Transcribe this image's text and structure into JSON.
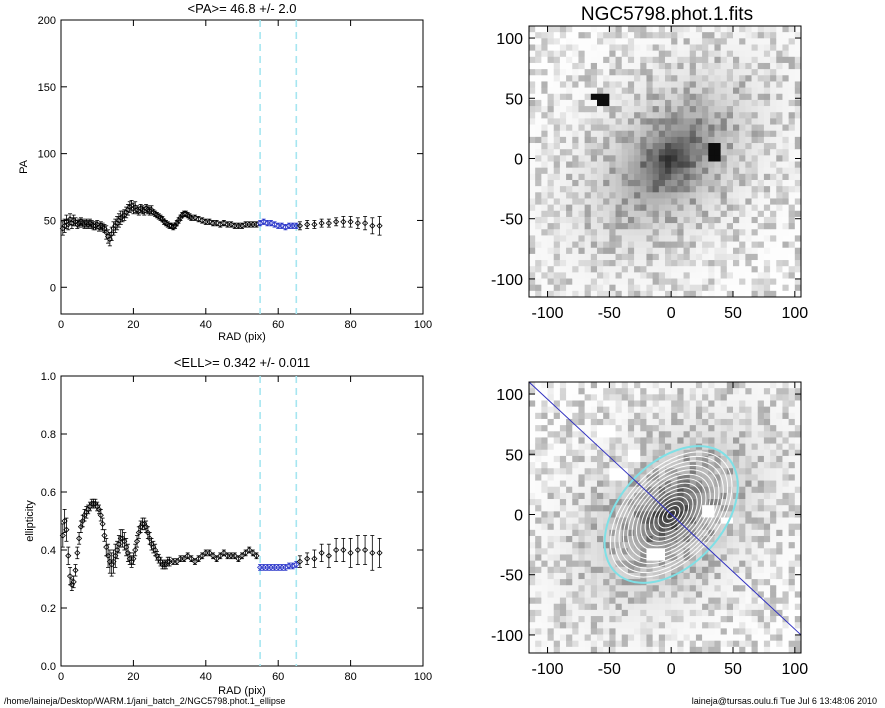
{
  "footer": {
    "left": "/home/laineja/Desktop/WARM.1/jani_batch_2/NGC5798.phot.1_ellipse",
    "right": "laineja@tursas.oulu.fi  Tue Jul  6 13:48:06 2010"
  },
  "chart_data": [
    {
      "type": "scatter",
      "title": "<PA>=  46.8 +/-   2.0",
      "xlabel": "RAD (pix)",
      "ylabel": "PA",
      "xlim": [
        0,
        100
      ],
      "ylim": [
        -20,
        200
      ],
      "xticks": [
        0,
        20,
        40,
        60,
        80,
        100
      ],
      "yticks": [
        0,
        50,
        100,
        150,
        200
      ],
      "vlines": [
        55,
        65
      ],
      "vline_color": "#a6e6f0",
      "mean": 46.8,
      "mean_err": 2.0,
      "series": [
        {
          "color": "#000000",
          "x": [
            0.5,
            1,
            1.5,
            2,
            2.5,
            3,
            3.5,
            4,
            4.5,
            5,
            5.5,
            6,
            6.5,
            7,
            7.5,
            8,
            8.5,
            9,
            9.5,
            10,
            10.5,
            11,
            11.5,
            12,
            12.5,
            13,
            13.5,
            14,
            14.5,
            15,
            15.5,
            16,
            16.5,
            17,
            17.5,
            18,
            18.5,
            19,
            19.5,
            20,
            20.5,
            21,
            21.5,
            22,
            22.5,
            23,
            23.5,
            24,
            24.5,
            25,
            25.5,
            26,
            26.5,
            27,
            27.5,
            28,
            28.5,
            29,
            29.5,
            30,
            30.5,
            31,
            31.5,
            32,
            32.5,
            33,
            33.5,
            34,
            34.5,
            35,
            35.5,
            36,
            37,
            38,
            39,
            40,
            41,
            42,
            43,
            44,
            45,
            46,
            47,
            48,
            49,
            50,
            51,
            52,
            53,
            54
          ],
          "y": [
            44,
            46,
            49,
            47,
            51,
            48,
            50,
            49,
            47,
            48,
            49,
            48,
            47,
            48,
            47,
            48,
            47,
            46,
            46,
            47,
            45,
            46,
            45,
            44,
            41,
            38,
            36,
            40,
            44,
            46,
            48,
            50,
            52,
            53,
            54,
            56,
            58,
            60,
            61,
            59,
            60,
            58,
            57,
            59,
            58,
            57,
            59,
            58,
            57,
            58,
            56,
            55,
            54,
            53,
            52,
            51,
            49,
            48,
            47,
            46,
            46,
            45,
            46,
            48,
            50,
            52,
            54,
            55,
            55,
            54,
            53,
            52,
            52,
            51,
            50,
            49,
            49,
            48,
            48,
            47,
            48,
            47,
            47,
            46,
            46,
            46,
            47,
            47,
            47,
            47
          ],
          "err": [
            5,
            5,
            5,
            4,
            4,
            4,
            4,
            3,
            3,
            3,
            3,
            3,
            3,
            3,
            3,
            3,
            3,
            3,
            3,
            3,
            3,
            3,
            3,
            3,
            5,
            5,
            5,
            5,
            5,
            5,
            5,
            5,
            5,
            4,
            4,
            4,
            4,
            4,
            4,
            4,
            4,
            3,
            3,
            3,
            3,
            3,
            3,
            3,
            3,
            3,
            2,
            2,
            2,
            2,
            2,
            2,
            2,
            2,
            2,
            2,
            2,
            2,
            2,
            2,
            2,
            2,
            2,
            2,
            2,
            2,
            2,
            2,
            2,
            2,
            2,
            2,
            2,
            2,
            2,
            2,
            2,
            2,
            2,
            2,
            2,
            2,
            2,
            2,
            2,
            2
          ]
        },
        {
          "color": "#2430c8",
          "x": [
            55,
            56,
            57,
            58,
            59,
            60,
            61,
            62,
            63,
            64,
            65
          ],
          "y": [
            48,
            49,
            48,
            48,
            47,
            46,
            46,
            45,
            46,
            46,
            46
          ],
          "err": [
            2,
            2,
            2,
            2,
            2,
            2,
            2,
            2,
            2,
            2,
            2
          ]
        },
        {
          "color": "#000000",
          "x": [
            66,
            68,
            70,
            72,
            74,
            76,
            78,
            80,
            82,
            84,
            86,
            88
          ],
          "y": [
            46,
            47,
            47,
            48,
            48,
            49,
            49,
            49,
            48,
            48,
            46,
            46
          ],
          "err": [
            3,
            3,
            3,
            3,
            3,
            3,
            4,
            4,
            4,
            5,
            6,
            7
          ]
        }
      ]
    },
    {
      "type": "scatter",
      "title": "<ELL>= 0.342 +/-  0.011",
      "xlabel": "RAD (pix)",
      "ylabel": "ellipticity",
      "xlim": [
        0,
        100
      ],
      "ylim": [
        0.0,
        1.0
      ],
      "xticks": [
        0,
        20,
        40,
        60,
        80,
        100
      ],
      "yticks": [
        0.0,
        0.2,
        0.4,
        0.6,
        0.8,
        1.0
      ],
      "ytick_labels": [
        "0.0",
        "0.2",
        "0.4",
        "0.6",
        "0.8",
        "1.0"
      ],
      "vlines": [
        55,
        65
      ],
      "vline_color": "#a6e6f0",
      "mean": 0.342,
      "mean_err": 0.011,
      "series": [
        {
          "color": "#000000",
          "x": [
            0.5,
            1,
            1.5,
            2,
            2.5,
            3,
            3.5,
            4,
            4.5,
            5,
            5.5,
            6,
            6.5,
            7,
            7.5,
            8,
            8.5,
            9,
            9.5,
            10,
            10.5,
            11,
            11.5,
            12,
            12.5,
            13,
            13.5,
            14,
            14.5,
            15,
            15.5,
            16,
            16.5,
            17,
            17.5,
            18,
            18.5,
            19,
            19.5,
            20,
            20.5,
            21,
            21.5,
            22,
            22.5,
            23,
            23.5,
            24,
            24.5,
            25,
            25.5,
            26,
            26.5,
            27,
            27.5,
            28,
            28.5,
            29,
            29.5,
            30,
            31,
            32,
            33,
            34,
            35,
            36,
            37,
            38,
            39,
            40,
            41,
            42,
            43,
            44,
            45,
            46,
            47,
            48,
            49,
            50,
            51,
            52,
            53,
            54
          ],
          "y": [
            0.45,
            0.5,
            0.47,
            0.38,
            0.31,
            0.28,
            0.29,
            0.33,
            0.39,
            0.44,
            0.48,
            0.5,
            0.52,
            0.53,
            0.54,
            0.55,
            0.56,
            0.56,
            0.56,
            0.55,
            0.54,
            0.52,
            0.49,
            0.45,
            0.41,
            0.38,
            0.36,
            0.35,
            0.36,
            0.38,
            0.4,
            0.42,
            0.44,
            0.44,
            0.43,
            0.41,
            0.39,
            0.37,
            0.36,
            0.37,
            0.4,
            0.43,
            0.46,
            0.48,
            0.49,
            0.49,
            0.48,
            0.46,
            0.44,
            0.42,
            0.41,
            0.4,
            0.38,
            0.37,
            0.36,
            0.35,
            0.35,
            0.35,
            0.36,
            0.36,
            0.36,
            0.36,
            0.37,
            0.37,
            0.38,
            0.37,
            0.36,
            0.37,
            0.38,
            0.39,
            0.39,
            0.38,
            0.37,
            0.38,
            0.39,
            0.38,
            0.38,
            0.38,
            0.37,
            0.38,
            0.39,
            0.4,
            0.39,
            0.38
          ],
          "err": [
            0.04,
            0.04,
            0.04,
            0.03,
            0.03,
            0.02,
            0.02,
            0.02,
            0.02,
            0.02,
            0.02,
            0.02,
            0.02,
            0.02,
            0.015,
            0.015,
            0.015,
            0.015,
            0.015,
            0.015,
            0.015,
            0.02,
            0.02,
            0.02,
            0.03,
            0.04,
            0.04,
            0.04,
            0.04,
            0.04,
            0.03,
            0.03,
            0.03,
            0.03,
            0.03,
            0.03,
            0.03,
            0.02,
            0.02,
            0.02,
            0.02,
            0.02,
            0.02,
            0.02,
            0.02,
            0.02,
            0.02,
            0.02,
            0.02,
            0.02,
            0.02,
            0.02,
            0.015,
            0.015,
            0.015,
            0.015,
            0.015,
            0.015,
            0.015,
            0.015,
            0.01,
            0.01,
            0.01,
            0.01,
            0.01,
            0.01,
            0.01,
            0.01,
            0.01,
            0.01,
            0.01,
            0.01,
            0.01,
            0.01,
            0.01,
            0.01,
            0.01,
            0.01,
            0.01,
            0.01,
            0.01,
            0.01,
            0.01,
            0.01
          ]
        },
        {
          "color": "#2430c8",
          "x": [
            55,
            56,
            57,
            58,
            59,
            60,
            61,
            62,
            63,
            64,
            65
          ],
          "y": [
            0.34,
            0.34,
            0.34,
            0.34,
            0.34,
            0.34,
            0.34,
            0.34,
            0.345,
            0.345,
            0.35
          ],
          "err": [
            0.01,
            0.01,
            0.01,
            0.01,
            0.01,
            0.01,
            0.01,
            0.01,
            0.01,
            0.01,
            0.01
          ]
        },
        {
          "color": "#000000",
          "x": [
            66,
            68,
            70,
            72,
            74,
            76,
            78,
            80,
            82,
            84,
            86,
            88
          ],
          "y": [
            0.36,
            0.37,
            0.37,
            0.39,
            0.38,
            0.4,
            0.4,
            0.39,
            0.4,
            0.4,
            0.39,
            0.39
          ],
          "err": [
            0.02,
            0.02,
            0.03,
            0.03,
            0.04,
            0.04,
            0.04,
            0.05,
            0.05,
            0.05,
            0.06,
            0.05
          ]
        }
      ]
    },
    {
      "type": "heatmap",
      "title": "NGC5798.phot.1.fits",
      "xlim": [
        -115,
        105
      ],
      "ylim": [
        -115,
        110
      ],
      "xticks": [
        -100,
        -50,
        0,
        50,
        100
      ],
      "yticks": [
        -100,
        -50,
        0,
        50,
        100
      ],
      "colormap": "grayscale (inverted)",
      "galaxy_center": [
        0,
        0
      ],
      "galaxy_pa": 46.8,
      "bright_sources": [
        [
          -57,
          50
        ],
        [
          35,
          5
        ]
      ]
    },
    {
      "type": "heatmap",
      "title": "",
      "xlim": [
        -115,
        105
      ],
      "ylim": [
        -115,
        110
      ],
      "xticks": [
        -100,
        -50,
        0,
        50,
        100
      ],
      "yticks": [
        -100,
        -50,
        0,
        50,
        100
      ],
      "colormap": "grayscale (inverted)",
      "overlays": [
        "ellipse contours (white)",
        "fitted ellipse (cyan)",
        "major axis line (blue)"
      ],
      "contour_colors": {
        "contours": "#ffffff",
        "fit": "#7fe0e6",
        "axis": "#3030c0"
      },
      "axis_angle_deg": 46.8,
      "fit_ellipse": {
        "semi_major": 65,
        "ellipticity": 0.342
      },
      "masked_regions": 6
    }
  ]
}
